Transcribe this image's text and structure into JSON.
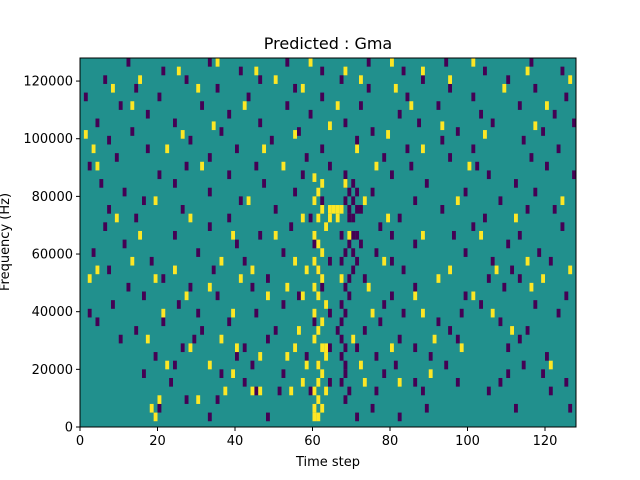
{
  "chart_data": {
    "type": "heatmap",
    "title": "Predicted : Gma",
    "xlabel": "Time step",
    "ylabel": "Frequency (Hz)",
    "xlim": [
      0,
      128
    ],
    "ylim": [
      0,
      128000
    ],
    "x_ticks": [
      0,
      20,
      40,
      60,
      80,
      100,
      120
    ],
    "y_ticks": [
      0,
      20000,
      40000,
      60000,
      80000,
      100000,
      120000
    ],
    "grid": false,
    "legend": "none",
    "colors": {
      "background": "#21908d",
      "high": "#fde725",
      "low": "#440154"
    },
    "high_cells": [
      [
        60,
        2000
      ],
      [
        61,
        2000
      ],
      [
        60,
        5000
      ],
      [
        62,
        5000
      ],
      [
        61,
        8000
      ],
      [
        60,
        11000
      ],
      [
        63,
        11000
      ],
      [
        61,
        14000
      ],
      [
        62,
        17000
      ],
      [
        61,
        20000
      ],
      [
        63,
        23000
      ],
      [
        62,
        26000
      ],
      [
        60,
        29000
      ],
      [
        61,
        32000
      ],
      [
        62,
        35000
      ],
      [
        60,
        38000
      ],
      [
        63,
        41000
      ],
      [
        61,
        44000
      ],
      [
        60,
        47000
      ],
      [
        62,
        50000
      ],
      [
        61,
        53000
      ],
      [
        60,
        56000
      ],
      [
        62,
        59000
      ],
      [
        61,
        62000
      ],
      [
        60,
        65000
      ],
      [
        63,
        68000
      ],
      [
        61,
        71000
      ],
      [
        62,
        74000
      ],
      [
        60,
        77000
      ],
      [
        61,
        80000
      ],
      [
        62,
        83000
      ],
      [
        60,
        85000
      ],
      [
        64,
        74000
      ],
      [
        65,
        74000
      ],
      [
        66,
        74000
      ],
      [
        67,
        74000
      ],
      [
        64,
        71000
      ],
      [
        66,
        71000
      ],
      [
        68,
        83000
      ],
      [
        19,
        2000
      ],
      [
        18,
        5000
      ],
      [
        20,
        8000
      ],
      [
        30,
        8000
      ],
      [
        37,
        11000
      ],
      [
        44,
        11000
      ],
      [
        46,
        11000
      ],
      [
        54,
        11000
      ],
      [
        57,
        14000
      ],
      [
        73,
        14000
      ],
      [
        82,
        14000
      ],
      [
        39,
        17000
      ],
      [
        90,
        17000
      ],
      [
        22,
        20000
      ],
      [
        33,
        20000
      ],
      [
        58,
        20000
      ],
      [
        72,
        20000
      ],
      [
        121,
        20000
      ],
      [
        46,
        23000
      ],
      [
        53,
        23000
      ],
      [
        28,
        26000
      ],
      [
        40,
        26000
      ],
      [
        55,
        26000
      ],
      [
        63,
        26000
      ],
      [
        80,
        26000
      ],
      [
        98,
        26000
      ],
      [
        17,
        29000
      ],
      [
        36,
        29000
      ],
      [
        70,
        29000
      ],
      [
        91,
        29000
      ],
      [
        56,
        32000
      ],
      [
        111,
        32000
      ],
      [
        21,
        38000
      ],
      [
        39,
        38000
      ],
      [
        75,
        38000
      ],
      [
        88,
        38000
      ],
      [
        106,
        38000
      ],
      [
        27,
        44000
      ],
      [
        48,
        44000
      ],
      [
        57,
        44000
      ],
      [
        86,
        44000
      ],
      [
        101,
        44000
      ],
      [
        33,
        47000
      ],
      [
        53,
        47000
      ],
      [
        74,
        47000
      ],
      [
        116,
        47000
      ],
      [
        2,
        50000
      ],
      [
        19,
        50000
      ],
      [
        41,
        50000
      ],
      [
        67,
        50000
      ],
      [
        92,
        50000
      ],
      [
        119,
        50000
      ],
      [
        4,
        53000
      ],
      [
        24,
        53000
      ],
      [
        44,
        53000
      ],
      [
        58,
        53000
      ],
      [
        95,
        53000
      ],
      [
        107,
        53000
      ],
      [
        126,
        53000
      ],
      [
        13,
        56000
      ],
      [
        36,
        56000
      ],
      [
        55,
        56000
      ],
      [
        78,
        56000
      ],
      [
        115,
        56000
      ],
      [
        15,
        65000
      ],
      [
        39,
        65000
      ],
      [
        50,
        65000
      ],
      [
        69,
        65000
      ],
      [
        88,
        65000
      ],
      [
        103,
        65000
      ],
      [
        9,
        71000
      ],
      [
        28,
        71000
      ],
      [
        57,
        71000
      ],
      [
        79,
        71000
      ],
      [
        112,
        71000
      ],
      [
        19,
        77000
      ],
      [
        43,
        77000
      ],
      [
        73,
        77000
      ],
      [
        97,
        77000
      ],
      [
        124,
        77000
      ],
      [
        4,
        89000
      ],
      [
        31,
        89000
      ],
      [
        52,
        89000
      ],
      [
        76,
        89000
      ],
      [
        100,
        89000
      ],
      [
        3,
        95000
      ],
      [
        22,
        95000
      ],
      [
        47,
        95000
      ],
      [
        71,
        95000
      ],
      [
        88,
        95000
      ],
      [
        1,
        100000
      ],
      [
        26,
        100000
      ],
      [
        55,
        100000
      ],
      [
        79,
        100000
      ],
      [
        104,
        100000
      ],
      [
        34,
        103000
      ],
      [
        64,
        103000
      ],
      [
        93,
        103000
      ],
      [
        117,
        103000
      ],
      [
        13,
        110000
      ],
      [
        42,
        110000
      ],
      [
        66,
        110000
      ],
      [
        85,
        110000
      ],
      [
        120,
        110000
      ],
      [
        8,
        116000
      ],
      [
        30,
        116000
      ],
      [
        57,
        116000
      ],
      [
        81,
        116000
      ],
      [
        109,
        116000
      ],
      [
        15,
        119000
      ],
      [
        50,
        119000
      ],
      [
        72,
        119000
      ],
      [
        95,
        119000
      ],
      [
        126,
        119000
      ],
      [
        25,
        122000
      ],
      [
        45,
        122000
      ],
      [
        68,
        122000
      ],
      [
        88,
        122000
      ],
      [
        115,
        122000
      ],
      [
        35,
        125000
      ],
      [
        59,
        125000
      ],
      [
        80,
        125000
      ],
      [
        101,
        125000
      ]
    ],
    "low_cells": [
      [
        69,
        71000
      ],
      [
        70,
        71000
      ],
      [
        69,
        74000
      ],
      [
        71,
        74000
      ],
      [
        68,
        77000
      ],
      [
        70,
        77000
      ],
      [
        69,
        80000
      ],
      [
        71,
        80000
      ],
      [
        68,
        83000
      ],
      [
        70,
        83000
      ],
      [
        67,
        65000
      ],
      [
        70,
        65000
      ],
      [
        71,
        65000
      ],
      [
        69,
        62000
      ],
      [
        72,
        62000
      ],
      [
        68,
        59000
      ],
      [
        70,
        59000
      ],
      [
        67,
        56000
      ],
      [
        71,
        56000
      ],
      [
        70,
        53000
      ],
      [
        69,
        50000
      ],
      [
        68,
        47000
      ],
      [
        69,
        44000
      ],
      [
        67,
        41000
      ],
      [
        68,
        38000
      ],
      [
        67,
        35000
      ],
      [
        66,
        32000
      ],
      [
        67,
        29000
      ],
      [
        68,
        26000
      ],
      [
        67,
        23000
      ],
      [
        68,
        20000
      ],
      [
        68,
        17000
      ],
      [
        67,
        14000
      ],
      [
        69,
        11000
      ],
      [
        68,
        8000
      ],
      [
        20,
        5000
      ],
      [
        27,
        8000
      ],
      [
        33,
        2000
      ],
      [
        48,
        2000
      ],
      [
        71,
        2000
      ],
      [
        82,
        2000
      ],
      [
        75,
        5000
      ],
      [
        89,
        5000
      ],
      [
        112,
        5000
      ],
      [
        126,
        5000
      ],
      [
        35,
        8000
      ],
      [
        45,
        11000
      ],
      [
        51,
        11000
      ],
      [
        59,
        11000
      ],
      [
        76,
        11000
      ],
      [
        88,
        11000
      ],
      [
        105,
        11000
      ],
      [
        121,
        11000
      ],
      [
        23,
        14000
      ],
      [
        42,
        14000
      ],
      [
        64,
        14000
      ],
      [
        86,
        14000
      ],
      [
        97,
        14000
      ],
      [
        108,
        14000
      ],
      [
        125,
        14000
      ],
      [
        16,
        17000
      ],
      [
        36,
        17000
      ],
      [
        52,
        17000
      ],
      [
        78,
        17000
      ],
      [
        110,
        17000
      ],
      [
        119,
        17000
      ],
      [
        24,
        20000
      ],
      [
        44,
        20000
      ],
      [
        61,
        20000
      ],
      [
        81,
        20000
      ],
      [
        94,
        20000
      ],
      [
        114,
        20000
      ],
      [
        19,
        23000
      ],
      [
        40,
        23000
      ],
      [
        58,
        23000
      ],
      [
        76,
        23000
      ],
      [
        90,
        23000
      ],
      [
        120,
        23000
      ],
      [
        26,
        26000
      ],
      [
        42,
        26000
      ],
      [
        64,
        26000
      ],
      [
        71,
        26000
      ],
      [
        86,
        26000
      ],
      [
        110,
        26000
      ],
      [
        10,
        29000
      ],
      [
        29,
        29000
      ],
      [
        48,
        29000
      ],
      [
        82,
        29000
      ],
      [
        97,
        29000
      ],
      [
        113,
        29000
      ],
      [
        14,
        32000
      ],
      [
        31,
        32000
      ],
      [
        50,
        32000
      ],
      [
        73,
        32000
      ],
      [
        95,
        32000
      ],
      [
        115,
        32000
      ],
      [
        4,
        35000
      ],
      [
        21,
        35000
      ],
      [
        38,
        35000
      ],
      [
        60,
        35000
      ],
      [
        77,
        35000
      ],
      [
        92,
        35000
      ],
      [
        108,
        35000
      ],
      [
        2,
        38000
      ],
      [
        30,
        38000
      ],
      [
        45,
        38000
      ],
      [
        64,
        38000
      ],
      [
        83,
        38000
      ],
      [
        98,
        38000
      ],
      [
        123,
        38000
      ],
      [
        8,
        41000
      ],
      [
        25,
        41000
      ],
      [
        52,
        41000
      ],
      [
        78,
        41000
      ],
      [
        103,
        41000
      ],
      [
        117,
        41000
      ],
      [
        16,
        44000
      ],
      [
        35,
        44000
      ],
      [
        56,
        44000
      ],
      [
        80,
        44000
      ],
      [
        99,
        44000
      ],
      [
        125,
        44000
      ],
      [
        12,
        47000
      ],
      [
        28,
        47000
      ],
      [
        44,
        47000
      ],
      [
        62,
        47000
      ],
      [
        86,
        47000
      ],
      [
        109,
        47000
      ],
      [
        21,
        50000
      ],
      [
        48,
        50000
      ],
      [
        73,
        50000
      ],
      [
        105,
        50000
      ],
      [
        113,
        50000
      ],
      [
        7,
        53000
      ],
      [
        34,
        53000
      ],
      [
        61,
        53000
      ],
      [
        83,
        53000
      ],
      [
        111,
        53000
      ],
      [
        18,
        56000
      ],
      [
        42,
        56000
      ],
      [
        64,
        56000
      ],
      [
        80,
        56000
      ],
      [
        106,
        56000
      ],
      [
        121,
        56000
      ],
      [
        3,
        59000
      ],
      [
        30,
        59000
      ],
      [
        52,
        59000
      ],
      [
        76,
        59000
      ],
      [
        99,
        59000
      ],
      [
        118,
        59000
      ],
      [
        11,
        62000
      ],
      [
        40,
        62000
      ],
      [
        60,
        62000
      ],
      [
        86,
        62000
      ],
      [
        110,
        62000
      ],
      [
        24,
        65000
      ],
      [
        46,
        65000
      ],
      [
        80,
        65000
      ],
      [
        96,
        65000
      ],
      [
        113,
        65000
      ],
      [
        6,
        68000
      ],
      [
        33,
        68000
      ],
      [
        54,
        68000
      ],
      [
        77,
        68000
      ],
      [
        101,
        68000
      ],
      [
        124,
        68000
      ],
      [
        14,
        71000
      ],
      [
        38,
        71000
      ],
      [
        59,
        71000
      ],
      [
        82,
        71000
      ],
      [
        104,
        71000
      ],
      [
        7,
        74000
      ],
      [
        26,
        74000
      ],
      [
        50,
        74000
      ],
      [
        72,
        74000
      ],
      [
        93,
        74000
      ],
      [
        115,
        74000
      ],
      [
        122,
        74000
      ],
      [
        16,
        77000
      ],
      [
        41,
        77000
      ],
      [
        62,
        77000
      ],
      [
        86,
        77000
      ],
      [
        108,
        77000
      ],
      [
        11,
        80000
      ],
      [
        33,
        80000
      ],
      [
        55,
        80000
      ],
      [
        75,
        80000
      ],
      [
        99,
        80000
      ],
      [
        117,
        80000
      ],
      [
        5,
        83000
      ],
      [
        24,
        83000
      ],
      [
        47,
        83000
      ],
      [
        68,
        86000
      ],
      [
        89,
        83000
      ],
      [
        112,
        83000
      ],
      [
        128,
        83000
      ],
      [
        20,
        86000
      ],
      [
        38,
        86000
      ],
      [
        57,
        86000
      ],
      [
        80,
        86000
      ],
      [
        105,
        86000
      ],
      [
        127,
        86000
      ],
      [
        2,
        89000
      ],
      [
        27,
        89000
      ],
      [
        45,
        89000
      ],
      [
        64,
        89000
      ],
      [
        85,
        89000
      ],
      [
        102,
        89000
      ],
      [
        120,
        89000
      ],
      [
        9,
        92000
      ],
      [
        33,
        92000
      ],
      [
        58,
        92000
      ],
      [
        78,
        92000
      ],
      [
        95,
        92000
      ],
      [
        116,
        92000
      ],
      [
        17,
        95000
      ],
      [
        40,
        95000
      ],
      [
        62,
        95000
      ],
      [
        84,
        95000
      ],
      [
        101,
        95000
      ],
      [
        123,
        95000
      ],
      [
        7,
        98000
      ],
      [
        28,
        98000
      ],
      [
        49,
        98000
      ],
      [
        71,
        98000
      ],
      [
        93,
        98000
      ],
      [
        114,
        98000
      ],
      [
        13,
        101000
      ],
      [
        36,
        101000
      ],
      [
        56,
        101000
      ],
      [
        75,
        101000
      ],
      [
        97,
        101000
      ],
      [
        119,
        101000
      ],
      [
        4,
        104000
      ],
      [
        24,
        104000
      ],
      [
        46,
        104000
      ],
      [
        68,
        104000
      ],
      [
        87,
        104000
      ],
      [
        106,
        104000
      ],
      [
        127,
        104000
      ],
      [
        17,
        107000
      ],
      [
        38,
        107000
      ],
      [
        59,
        107000
      ],
      [
        82,
        107000
      ],
      [
        103,
        107000
      ],
      [
        122,
        107000
      ],
      [
        10,
        110000
      ],
      [
        31,
        110000
      ],
      [
        53,
        110000
      ],
      [
        72,
        110000
      ],
      [
        92,
        110000
      ],
      [
        113,
        110000
      ],
      [
        1,
        113000
      ],
      [
        20,
        113000
      ],
      [
        43,
        113000
      ],
      [
        62,
        113000
      ],
      [
        84,
        113000
      ],
      [
        101,
        113000
      ],
      [
        125,
        113000
      ],
      [
        14,
        116000
      ],
      [
        35,
        116000
      ],
      [
        55,
        116000
      ],
      [
        74,
        116000
      ],
      [
        95,
        116000
      ],
      [
        117,
        116000
      ],
      [
        6,
        119000
      ],
      [
        27,
        119000
      ],
      [
        46,
        119000
      ],
      [
        67,
        119000
      ],
      [
        88,
        119000
      ],
      [
        110,
        119000
      ],
      [
        21,
        122000
      ],
      [
        41,
        122000
      ],
      [
        62,
        122000
      ],
      [
        83,
        122000
      ],
      [
        104,
        122000
      ],
      [
        124,
        122000
      ],
      [
        12,
        125000
      ],
      [
        33,
        125000
      ],
      [
        53,
        125000
      ],
      [
        74,
        125000
      ],
      [
        94,
        125000
      ],
      [
        116,
        125000
      ]
    ]
  }
}
